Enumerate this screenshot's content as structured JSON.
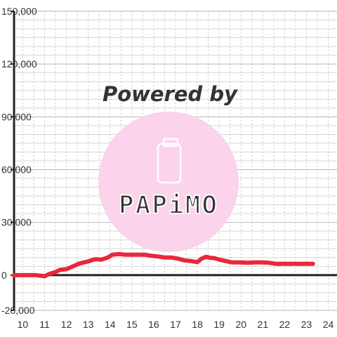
{
  "chart_data": {
    "type": "line",
    "title": "",
    "xlabel": "",
    "ylabel": "",
    "xlim": [
      9.6,
      24.4
    ],
    "ylim": [
      -20000,
      150000
    ],
    "x_ticks": [
      10,
      11,
      12,
      13,
      14,
      15,
      16,
      17,
      18,
      19,
      20,
      21,
      22,
      23,
      24
    ],
    "x_tick_labels": [
      "10",
      "11",
      "12",
      "13",
      "14",
      "15",
      "16",
      "17",
      "18",
      "19",
      "20",
      "21",
      "22",
      "23",
      "24"
    ],
    "y_ticks": [
      -20000,
      0,
      30000,
      60000,
      90000,
      120000,
      150000
    ],
    "y_tick_labels": [
      "-20,000",
      "0",
      "30,000",
      "60,000",
      "90,000",
      "120,000",
      "150,000"
    ],
    "grid": true,
    "series": [
      {
        "color": "#e8283c",
        "x": [
          9.6,
          10.0,
          10.4,
          10.6,
          10.8,
          11.0,
          11.2,
          11.5,
          11.7,
          12.0,
          12.3,
          12.6,
          13.0,
          13.3,
          13.6,
          13.9,
          14.1,
          14.4,
          14.7,
          15.0,
          15.3,
          15.6,
          15.9,
          16.2,
          16.5,
          16.8,
          17.1,
          17.4,
          17.7,
          18.0,
          18.2,
          18.4,
          18.6,
          18.8,
          19.0,
          19.3,
          19.6,
          20.0,
          20.3,
          20.6,
          21.0,
          21.3,
          21.6,
          22.0,
          22.3,
          22.6,
          23.0,
          23.3
        ],
        "y": [
          0,
          0,
          0,
          0,
          -300,
          -600,
          600,
          1800,
          3000,
          3400,
          5000,
          6600,
          7800,
          9000,
          8800,
          10000,
          11600,
          12000,
          11600,
          11600,
          11600,
          11600,
          11000,
          10600,
          10000,
          10000,
          9400,
          8400,
          8000,
          7400,
          9400,
          10400,
          9800,
          9600,
          8800,
          8000,
          7200,
          7200,
          7000,
          7200,
          7200,
          7000,
          6400,
          6400,
          6400,
          6400,
          6400,
          6400
        ]
      }
    ]
  },
  "watermark": {
    "text": "Powered by",
    "logo": "PAPiMO",
    "color": "#fbd3ea",
    "icon": "phone-icon"
  }
}
